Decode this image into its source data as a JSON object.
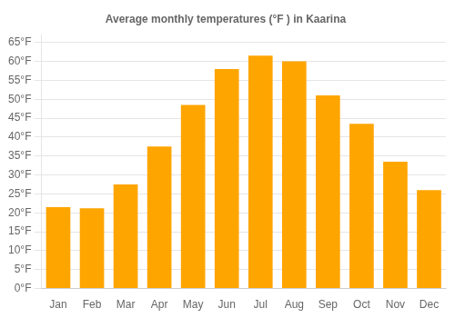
{
  "chart_data": {
    "type": "bar",
    "title": "Average monthly temperatures (°F ) in Kaarina",
    "categories": [
      "Jan",
      "Feb",
      "Mar",
      "Apr",
      "May",
      "Jun",
      "Jul",
      "Aug",
      "Sep",
      "Oct",
      "Nov",
      "Dec"
    ],
    "values": [
      21.5,
      21.2,
      27.5,
      37.5,
      48.5,
      58.0,
      61.5,
      60.0,
      51.0,
      43.5,
      33.5,
      26.0
    ],
    "color": "#FFA500",
    "ylim": [
      0,
      67
    ],
    "yticks": [
      {
        "value": 0,
        "label": "0°F"
      },
      {
        "value": 5,
        "label": "5°F"
      },
      {
        "value": 10,
        "label": "10°F"
      },
      {
        "value": 15,
        "label": "15°F"
      },
      {
        "value": 20,
        "label": "20°F"
      },
      {
        "value": 25,
        "label": "25°F"
      },
      {
        "value": 30,
        "label": "30°F"
      },
      {
        "value": 35,
        "label": "35°F"
      },
      {
        "value": 40,
        "label": "40°F"
      },
      {
        "value": 45,
        "label": "45°F"
      },
      {
        "value": 50,
        "label": "50°F"
      },
      {
        "value": 55,
        "label": "55°F"
      },
      {
        "value": 60,
        "label": "60°F"
      },
      {
        "value": 65,
        "label": "65°F"
      }
    ],
    "grid": true
  }
}
